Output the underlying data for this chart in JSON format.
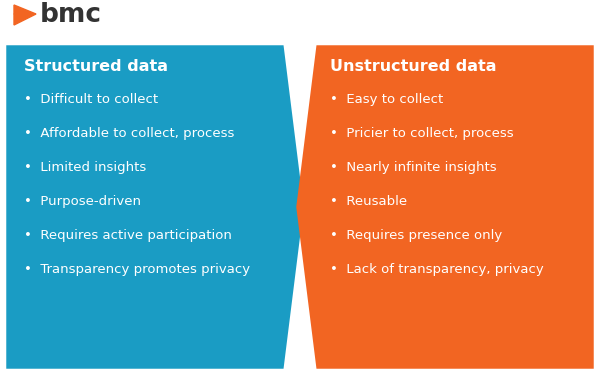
{
  "bg_color": "#ffffff",
  "logo_text": "bmc",
  "logo_color": "#f26522",
  "logo_text_color": "#333333",
  "left_panel": {
    "color": "#1a9cc4",
    "title": "Structured data",
    "bullets": [
      "Difficult to collect",
      "Affordable to collect, process",
      "Limited insights",
      "Purpose-driven",
      "Requires active participation",
      "Transparency promotes privacy"
    ]
  },
  "right_panel": {
    "color": "#f26522",
    "title": "Unstructured data",
    "bullets": [
      "Easy to collect",
      "Pricier to collect, process",
      "Nearly infinite insights",
      "Reusable",
      "Requires presence only",
      "Lack of transparency, privacy"
    ]
  },
  "text_color": "#ffffff",
  "title_fontsize": 11.5,
  "bullet_fontsize": 9.5,
  "logo_fontsize": 19,
  "logo_icon_fontsize": 18
}
